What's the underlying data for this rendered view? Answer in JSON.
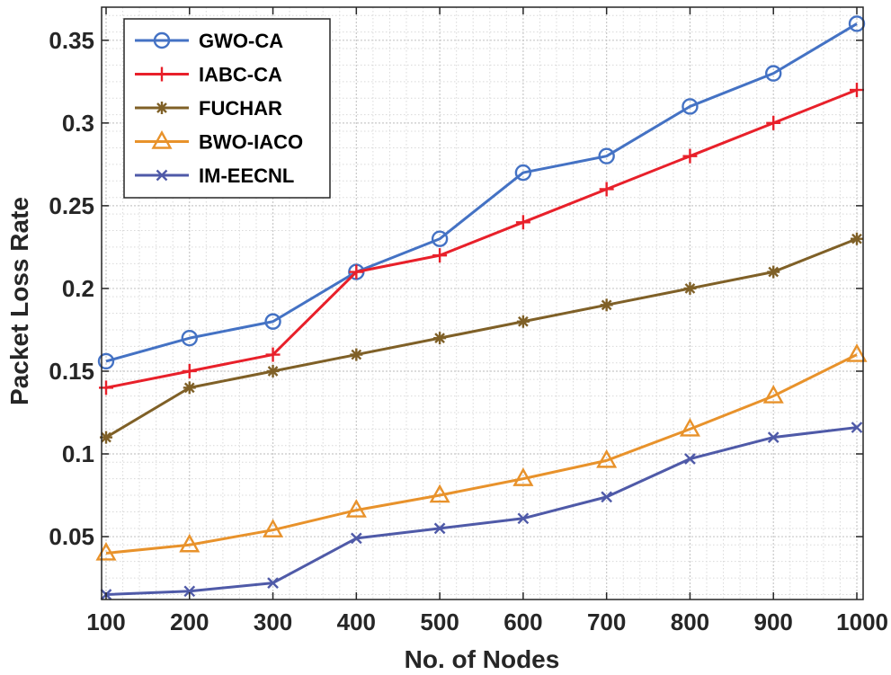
{
  "chart_data": {
    "type": "line",
    "xlabel": "No. of Nodes",
    "ylabel": "Packet Loss Rate",
    "x": [
      100,
      200,
      300,
      400,
      500,
      600,
      700,
      800,
      900,
      1000
    ],
    "xlim": [
      100,
      1000
    ],
    "ylim": [
      0.012,
      0.37
    ],
    "x_ticks": [
      100,
      200,
      300,
      400,
      500,
      600,
      700,
      800,
      900,
      1000
    ],
    "y_ticks": [
      0.05,
      0.1,
      0.15,
      0.2,
      0.25,
      0.3,
      0.35
    ],
    "y_tick_labels": [
      "0.05",
      "0.1",
      "0.15",
      "0.2",
      "0.25",
      "0.3",
      "0.35"
    ],
    "grid": true,
    "minor_grid": true,
    "legend_position": "top-left",
    "series": [
      {
        "name": "GWO-CA",
        "color": "#4472C4",
        "marker": "circle",
        "values": [
          0.156,
          0.17,
          0.18,
          0.21,
          0.23,
          0.27,
          0.28,
          0.31,
          0.33,
          0.36
        ]
      },
      {
        "name": "IABC-CA",
        "color": "#E8202A",
        "marker": "plus",
        "values": [
          0.14,
          0.15,
          0.16,
          0.21,
          0.22,
          0.24,
          0.26,
          0.28,
          0.3,
          0.32
        ]
      },
      {
        "name": "FUCHAR",
        "color": "#7F6027",
        "marker": "asterisk",
        "values": [
          0.11,
          0.14,
          0.15,
          0.16,
          0.17,
          0.18,
          0.19,
          0.2,
          0.21,
          0.23
        ]
      },
      {
        "name": "BWO-IACO",
        "color": "#E8922B",
        "marker": "triangle",
        "values": [
          0.04,
          0.045,
          0.054,
          0.066,
          0.075,
          0.085,
          0.096,
          0.115,
          0.135,
          0.16
        ]
      },
      {
        "name": "IM-EECNL",
        "color": "#4F5AA8",
        "marker": "x",
        "values": [
          0.015,
          0.017,
          0.022,
          0.049,
          0.055,
          0.061,
          0.074,
          0.097,
          0.11,
          0.116
        ]
      }
    ]
  }
}
